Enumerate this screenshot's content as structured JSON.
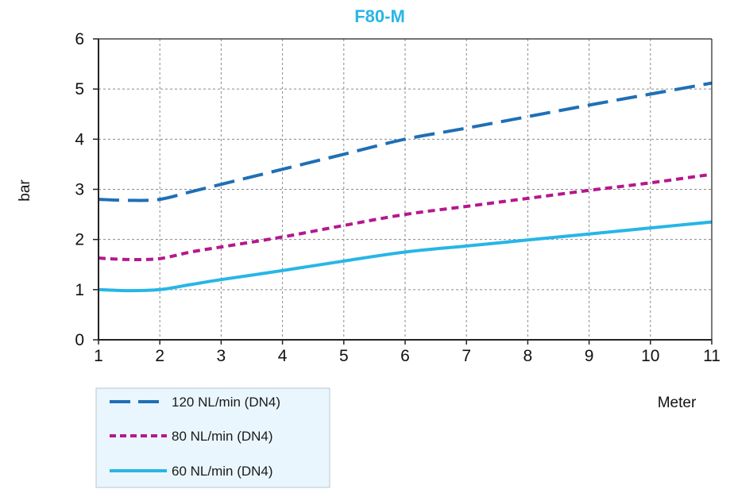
{
  "chart_data": {
    "type": "line",
    "title": "F80-M",
    "xlabel": "Meter",
    "ylabel": "bar",
    "xlim": [
      1,
      11
    ],
    "ylim": [
      0,
      6
    ],
    "x_ticks": [
      "1",
      "2",
      "3",
      "4",
      "5",
      "6",
      "7",
      "8",
      "9",
      "10",
      "11"
    ],
    "y_ticks": [
      "0",
      "1",
      "2",
      "3",
      "4",
      "5",
      "6"
    ],
    "grid": true,
    "legend_position": "bottom-left",
    "series": [
      {
        "name": "120 NL/min (DN4)",
        "color": "#1f6fb5",
        "style": "long-dash",
        "x": [
          1,
          1.5,
          2,
          2.5,
          3,
          4,
          5,
          6,
          7,
          8,
          9,
          10,
          11
        ],
        "y": [
          2.8,
          2.78,
          2.8,
          2.95,
          3.1,
          3.4,
          3.7,
          4.0,
          4.22,
          4.45,
          4.68,
          4.9,
          5.12
        ]
      },
      {
        "name": "80 NL/min (DN4)",
        "color": "#b5178f",
        "style": "short-dash",
        "x": [
          1,
          1.5,
          2,
          2.5,
          3,
          4,
          5,
          6,
          7,
          8,
          9,
          10,
          11
        ],
        "y": [
          1.63,
          1.6,
          1.62,
          1.75,
          1.85,
          2.05,
          2.28,
          2.5,
          2.66,
          2.82,
          2.98,
          3.13,
          3.3
        ]
      },
      {
        "name": "60 NL/min (DN4)",
        "color": "#27b6e6",
        "style": "solid",
        "x": [
          1,
          1.5,
          2,
          2.5,
          3,
          4,
          5,
          6,
          7,
          8,
          9,
          10,
          11
        ],
        "y": [
          1.0,
          0.98,
          1.0,
          1.1,
          1.2,
          1.38,
          1.57,
          1.75,
          1.87,
          1.99,
          2.11,
          2.23,
          2.35
        ]
      }
    ]
  }
}
